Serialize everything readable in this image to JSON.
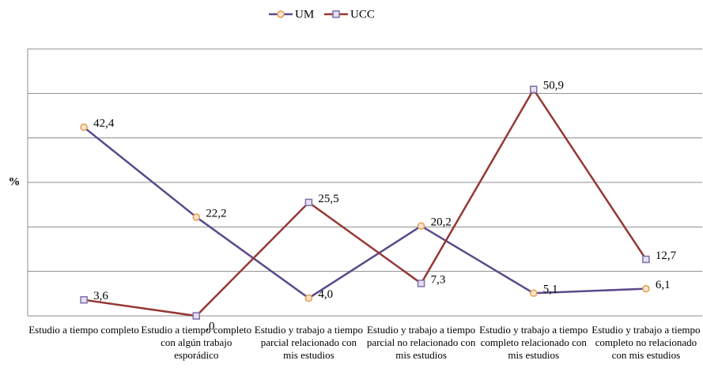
{
  "chart_data": {
    "type": "line",
    "y_label": "%",
    "categories": [
      "Estudio a tiempo completo",
      "Estudio a tiempo completo con algún trabajo esporádico",
      "Estudio y trabajo a tiempo parcial relacionado con mis estudios",
      "Estudio y trabajo a tiempo parcial no relacionado con mis estudios",
      "Estudio y trabajo a tiempo completo relacionado con mis estudios",
      "Estudio y trabajo a tiempo completo no relacionado con mis estudios"
    ],
    "series": [
      {
        "name": "UM",
        "color": "#5b4a8b",
        "marker_color": "#e69b4a",
        "marker": "circle",
        "values": [
          42.4,
          22.2,
          4.0,
          20.2,
          5.1,
          6.1
        ],
        "value_labels": [
          "42,4",
          "22,2",
          "4,0",
          "20,2",
          "5,1",
          "6,1"
        ]
      },
      {
        "name": "UCC",
        "color": "#953735",
        "marker_color": "#7f6fa6",
        "marker": "square",
        "values": [
          3.6,
          0,
          25.5,
          7.3,
          50.9,
          12.7
        ],
        "value_labels": [
          "3,6",
          ",0",
          "25,5",
          "7,3",
          "50,9",
          "12,7"
        ]
      }
    ],
    "ylim": [
      0,
      60
    ],
    "yticks": [
      0,
      10,
      20,
      30,
      40,
      50,
      60
    ],
    "grid": true,
    "legend": "top"
  }
}
